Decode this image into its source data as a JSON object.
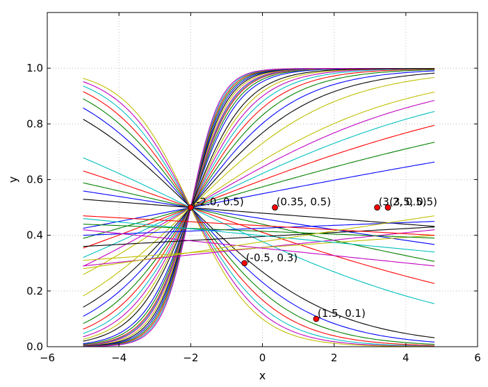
{
  "chart_data": {
    "type": "line",
    "title": "",
    "xlabel": "x",
    "ylabel": "y",
    "xlim": [
      -6,
      6
    ],
    "ylim": [
      0.0,
      1.2
    ],
    "grid": true,
    "xticks": [
      -6,
      -4,
      -2,
      0,
      2,
      4,
      6
    ],
    "xtick_labels": [
      "−6",
      "−4",
      "−2",
      "0",
      "2",
      "4",
      "6"
    ],
    "yticks": [
      0.0,
      0.2,
      0.4,
      0.6,
      0.8,
      1.0
    ],
    "ytick_labels": [
      "0.0",
      "0.2",
      "0.4",
      "0.6",
      "0.8",
      "1.0"
    ],
    "x_range": [
      -5.0,
      4.8
    ],
    "series_colors": [
      "#0000ff",
      "#008000",
      "#ff0000",
      "#00bfbf",
      "#bf00bf",
      "#bfbf00",
      "#000000"
    ],
    "sigmoid_families": [
      {
        "sign": 1,
        "w_values": [
          1.5,
          1.6,
          1.7,
          1.75,
          1.8,
          1.9,
          2.0,
          2.1,
          2.2,
          2.3,
          2.4,
          2.5
        ]
      },
      {
        "sign": 1,
        "w_values": [
          0.5,
          0.6,
          0.7,
          0.8,
          0.9,
          1.0,
          1.1,
          1.2,
          1.3
        ]
      },
      {
        "sign": 1,
        "w_values": [
          0.1,
          0.15,
          0.2,
          0.25,
          0.3,
          0.35
        ]
      },
      {
        "sign": -1,
        "w_values": [
          0.5,
          0.6,
          0.7,
          0.8,
          0.9,
          1.0,
          1.1
        ]
      },
      {
        "sign": -1,
        "w_values": [
          0.04,
          0.08,
          0.12,
          0.18,
          0.25
        ]
      }
    ],
    "fan_lines": [
      {
        "y_start": 0.29,
        "y_end": 0.42
      },
      {
        "y_start": 0.31,
        "y_end": 0.4
      },
      {
        "y_start": 0.36,
        "y_end": 0.43
      },
      {
        "y_start": 0.4,
        "y_end": 0.45
      },
      {
        "y_start": 0.44,
        "y_end": 0.39
      },
      {
        "y_start": 0.47,
        "y_end": 0.4
      },
      {
        "y_start": 0.46,
        "y_end": 0.34
      },
      {
        "y_start": 0.42,
        "y_end": 0.29
      },
      {
        "y_start": 0.28,
        "y_end": 0.47
      }
    ],
    "points": [
      {
        "x": -2.0,
        "y": 0.5,
        "label": "(-2.0, 0.5)"
      },
      {
        "x": 0.35,
        "y": 0.5,
        "label": "(0.35, 0.5)"
      },
      {
        "x": 3.2,
        "y": 0.5,
        "label": "(3.2, 0.5)"
      },
      {
        "x": 3.5,
        "y": 0.5,
        "label": "(3.5, 0.5)"
      },
      {
        "x": -0.5,
        "y": 0.3,
        "label": "(-0.5, 0.3)"
      },
      {
        "x": 1.5,
        "y": 0.1,
        "label": "(1.5, 0.1)"
      }
    ],
    "point_color": "#ff0000"
  }
}
